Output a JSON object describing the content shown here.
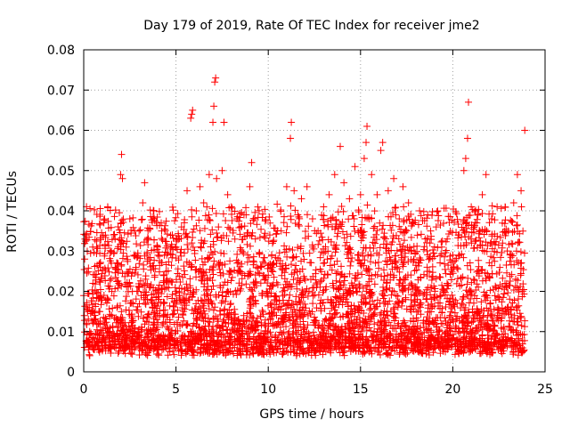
{
  "chart_data": {
    "type": "scatter",
    "title": "Day 179 of 2019, Rate Of TEC Index for receiver jme2",
    "xlabel": "GPS time / hours",
    "ylabel": "ROTI / TECUs",
    "xlim": [
      0,
      25
    ],
    "ylim": [
      0,
      0.08
    ],
    "x_ticks": [
      0,
      5,
      10,
      15,
      20,
      25
    ],
    "y_ticks": [
      0,
      0.01,
      0.02,
      0.03,
      0.04,
      0.05,
      0.06,
      0.07,
      0.08
    ],
    "x_tick_labels": [
      "0",
      "5",
      "10",
      "15",
      "20",
      "25"
    ],
    "y_tick_labels": [
      "0",
      "0.01",
      "0.02",
      "0.03",
      "0.04",
      "0.05",
      "0.06",
      "0.07",
      "0.08"
    ],
    "grid": true,
    "marker": "+",
    "color": "#ff0000",
    "series": [
      {
        "points": [
          [
            0.05,
            0.028
          ],
          [
            0.1,
            0.034
          ],
          [
            0.15,
            0.012
          ],
          [
            0.3,
            0.016
          ],
          [
            0.5,
            0.022
          ],
          [
            0.7,
            0.031
          ],
          [
            0.9,
            0.026
          ],
          [
            1.1,
            0.019
          ],
          [
            1.3,
            0.041
          ],
          [
            1.5,
            0.027
          ],
          [
            1.7,
            0.033
          ],
          [
            1.9,
            0.022
          ],
          [
            2.0,
            0.049
          ],
          [
            2.05,
            0.054
          ],
          [
            2.1,
            0.048
          ],
          [
            2.3,
            0.031
          ],
          [
            2.5,
            0.038
          ],
          [
            2.8,
            0.029
          ],
          [
            3.0,
            0.035
          ],
          [
            3.2,
            0.042
          ],
          [
            3.3,
            0.047
          ],
          [
            3.5,
            0.033
          ],
          [
            3.8,
            0.04
          ],
          [
            4.0,
            0.031
          ],
          [
            4.2,
            0.037
          ],
          [
            4.5,
            0.029
          ],
          [
            4.8,
            0.034
          ],
          [
            5.0,
            0.031
          ],
          [
            5.3,
            0.036
          ],
          [
            5.6,
            0.045
          ],
          [
            5.8,
            0.063
          ],
          [
            5.85,
            0.064
          ],
          [
            5.9,
            0.065
          ],
          [
            6.1,
            0.04
          ],
          [
            6.3,
            0.046
          ],
          [
            6.5,
            0.042
          ],
          [
            6.8,
            0.049
          ],
          [
            7.0,
            0.062
          ],
          [
            7.05,
            0.066
          ],
          [
            7.1,
            0.072
          ],
          [
            7.15,
            0.073
          ],
          [
            7.2,
            0.048
          ],
          [
            7.5,
            0.05
          ],
          [
            7.6,
            0.062
          ],
          [
            7.8,
            0.044
          ],
          [
            8.0,
            0.041
          ],
          [
            8.3,
            0.038
          ],
          [
            8.5,
            0.036
          ],
          [
            8.8,
            0.039
          ],
          [
            9.0,
            0.046
          ],
          [
            9.1,
            0.052
          ],
          [
            9.3,
            0.033
          ],
          [
            9.6,
            0.026
          ],
          [
            10.0,
            0.024
          ],
          [
            10.3,
            0.027
          ],
          [
            10.7,
            0.035
          ],
          [
            11.0,
            0.046
          ],
          [
            11.2,
            0.058
          ],
          [
            11.25,
            0.062
          ],
          [
            11.4,
            0.045
          ],
          [
            11.6,
            0.039
          ],
          [
            11.8,
            0.043
          ],
          [
            12.1,
            0.046
          ],
          [
            12.4,
            0.038
          ],
          [
            12.7,
            0.035
          ],
          [
            13.0,
            0.041
          ],
          [
            13.3,
            0.044
          ],
          [
            13.6,
            0.049
          ],
          [
            13.9,
            0.056
          ],
          [
            14.1,
            0.047
          ],
          [
            14.4,
            0.043
          ],
          [
            14.7,
            0.051
          ],
          [
            15.0,
            0.044
          ],
          [
            15.2,
            0.053
          ],
          [
            15.3,
            0.057
          ],
          [
            15.35,
            0.061
          ],
          [
            15.6,
            0.049
          ],
          [
            15.9,
            0.044
          ],
          [
            16.1,
            0.055
          ],
          [
            16.2,
            0.057
          ],
          [
            16.5,
            0.045
          ],
          [
            16.8,
            0.048
          ],
          [
            17.1,
            0.038
          ],
          [
            17.3,
            0.046
          ],
          [
            17.6,
            0.042
          ],
          [
            17.9,
            0.037
          ],
          [
            18.2,
            0.04
          ],
          [
            18.5,
            0.033
          ],
          [
            18.8,
            0.035
          ],
          [
            19.1,
            0.036
          ],
          [
            19.4,
            0.031
          ],
          [
            19.7,
            0.033
          ],
          [
            20.0,
            0.029
          ],
          [
            20.3,
            0.034
          ],
          [
            20.6,
            0.05
          ],
          [
            20.7,
            0.053
          ],
          [
            20.8,
            0.058
          ],
          [
            20.85,
            0.067
          ],
          [
            21.0,
            0.041
          ],
          [
            21.3,
            0.037
          ],
          [
            21.6,
            0.044
          ],
          [
            21.8,
            0.049
          ],
          [
            22.1,
            0.038
          ],
          [
            22.4,
            0.041
          ],
          [
            22.7,
            0.032
          ],
          [
            23.0,
            0.035
          ],
          [
            23.3,
            0.042
          ],
          [
            23.5,
            0.049
          ],
          [
            23.7,
            0.045
          ],
          [
            23.9,
            0.06
          ]
        ]
      }
    ]
  }
}
